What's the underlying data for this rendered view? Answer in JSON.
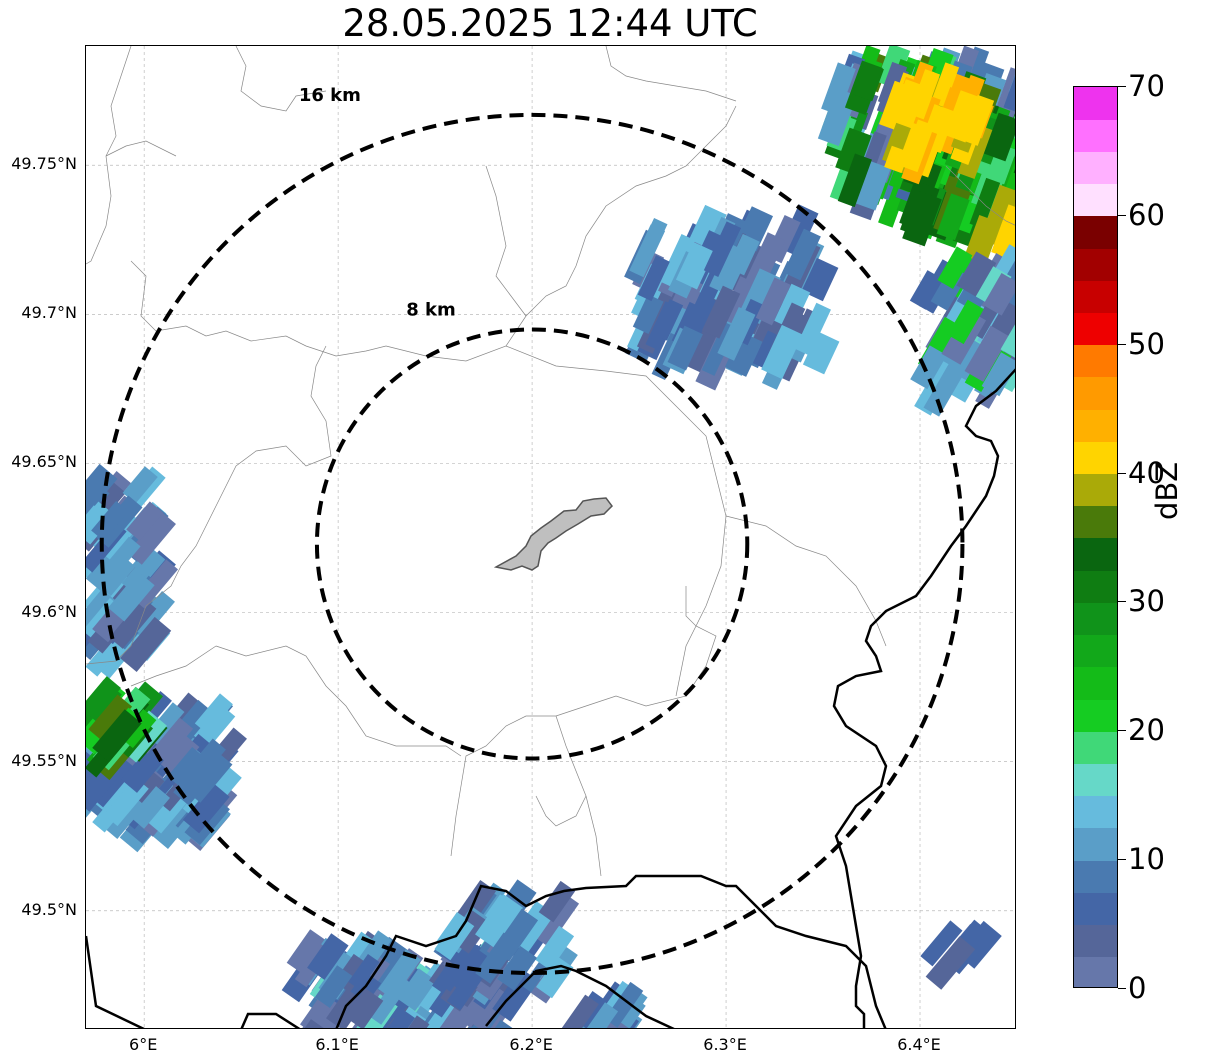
{
  "title": "28.05.2025 12:44 UTC",
  "map": {
    "lon_range": [
      5.97,
      6.45
    ],
    "lat_range": [
      49.46,
      49.79
    ],
    "rings": [
      {
        "label": "16 km",
        "radius_km": 16
      },
      {
        "label": "8 km",
        "radius_km": 8
      }
    ],
    "center": {
      "lon": 6.2,
      "lat": 49.623
    },
    "lat_ticks": [
      {
        "value": 49.75,
        "label": "49.75°N"
      },
      {
        "value": 49.7,
        "label": "49.7°N"
      },
      {
        "value": 49.65,
        "label": "49.65°N"
      },
      {
        "value": 49.6,
        "label": "49.6°N"
      },
      {
        "value": 49.55,
        "label": "49.55°N"
      },
      {
        "value": 49.5,
        "label": "49.5°N"
      }
    ],
    "lon_ticks": [
      {
        "value": 6.0,
        "label": "6°E"
      },
      {
        "value": 6.1,
        "label": "6.1°E"
      },
      {
        "value": 6.2,
        "label": "6.2°E"
      },
      {
        "value": 6.3,
        "label": "6.3°E"
      },
      {
        "value": 6.4,
        "label": "6.4°E"
      }
    ],
    "gridlines": true
  },
  "colorbar": {
    "label": "dBZ",
    "min": 0,
    "max": 70,
    "ticks": [
      {
        "value": 0,
        "label": "0"
      },
      {
        "value": 10,
        "label": "10"
      },
      {
        "value": 20,
        "label": "20"
      },
      {
        "value": 30,
        "label": "30"
      },
      {
        "value": 40,
        "label": "40"
      },
      {
        "value": 50,
        "label": "50"
      },
      {
        "value": 60,
        "label": "60"
      },
      {
        "value": 70,
        "label": "70"
      }
    ],
    "colors": [
      "#6677aa",
      "#556699",
      "#4466a6",
      "#4a7ab0",
      "#5a9ec8",
      "#66bbdd",
      "#66d8c8",
      "#40d878",
      "#15cc22",
      "#14bb18",
      "#12a81a",
      "#10931a",
      "#0f7d12",
      "#0a6610",
      "#4a7a0a",
      "#aaaa08",
      "#ffd400",
      "#ffb000",
      "#ff9a00",
      "#ff7a00",
      "#ee0000",
      "#c80000",
      "#a20000",
      "#7a0000",
      "#ffe0ff",
      "#ffb0ff",
      "#ff70ff",
      "#ee33ee"
    ]
  },
  "echoes": [
    {
      "region": "northeast",
      "dbz_max": 42
    },
    {
      "region": "east",
      "dbz_max": 20
    },
    {
      "region": "west",
      "dbz_max": 22
    },
    {
      "region": "south",
      "dbz_max": 15
    }
  ]
}
